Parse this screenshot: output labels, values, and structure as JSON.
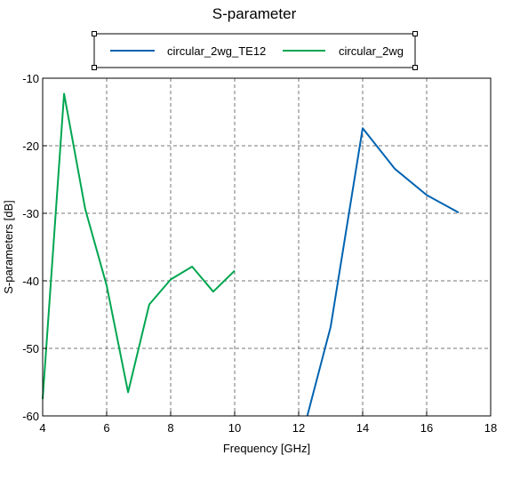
{
  "chart_data": {
    "type": "line",
    "title": "S-parameter",
    "xlabel": "Frequency [GHz]",
    "ylabel": "S-parameters [dB]",
    "xlim": [
      4,
      18
    ],
    "ylim": [
      -60,
      -10
    ],
    "xticks": [
      4,
      6,
      8,
      10,
      12,
      14,
      16,
      18
    ],
    "yticks": [
      -60,
      -50,
      -40,
      -30,
      -20,
      -10
    ],
    "grid": true,
    "legend_position": "top-center",
    "series": [
      {
        "name": "circular_2wg_TE12",
        "color": "#0063b1",
        "x": [
          12.27,
          13.0,
          14.0,
          15.0,
          16.0,
          17.0
        ],
        "y": [
          -60.0,
          -46.8,
          -17.4,
          -23.4,
          -27.3,
          -29.9
        ]
      },
      {
        "name": "circular_2wg",
        "color": "#00a651",
        "x": [
          4.0,
          4.67,
          5.33,
          6.0,
          6.67,
          7.33,
          8.0,
          8.67,
          9.33,
          10.0
        ],
        "y": [
          -57.5,
          -12.3,
          -29.4,
          -40.7,
          -56.5,
          -43.5,
          -39.8,
          -37.9,
          -41.6,
          -38.5
        ]
      }
    ]
  }
}
